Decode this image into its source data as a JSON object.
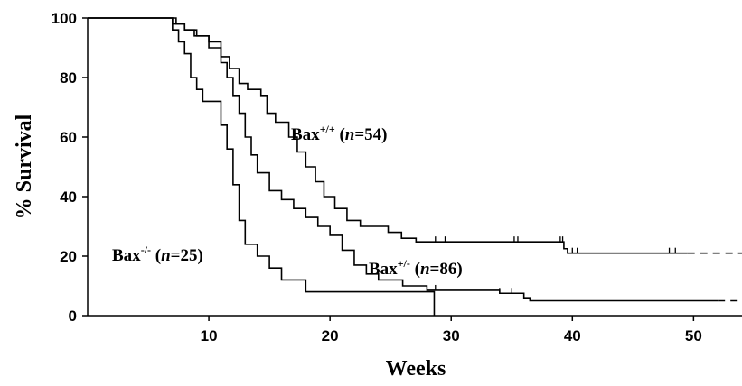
{
  "chart_data": {
    "type": "step",
    "x_label": "Weeks",
    "y_label": "% Survival",
    "xlim": [
      0,
      54
    ],
    "ylim": [
      0,
      100
    ],
    "xticks": [
      10,
      20,
      30,
      40,
      50
    ],
    "yticks": [
      0,
      20,
      40,
      60,
      80,
      100
    ],
    "series": [
      {
        "label": [
          "Bax",
          "+/+",
          " (",
          "n",
          "=54)"
        ],
        "color": "#000000",
        "dashed_extension": true,
        "x": [
          0,
          7.3,
          8,
          8.8,
          10,
          11,
          11.7,
          12.5,
          13.2,
          14.3,
          14.8,
          15.5,
          16.6,
          17.3,
          18,
          18.8,
          19.5,
          20.4,
          21.4,
          22.5,
          24.8,
          25.9,
          27.1,
          39.3,
          39.6,
          49.5
        ],
        "values": [
          100,
          98,
          96,
          94,
          92,
          87,
          83,
          78,
          76,
          74,
          68,
          65,
          60,
          55,
          50,
          45,
          40,
          36,
          32,
          30,
          28,
          26,
          24.8,
          22.5,
          21,
          21
        ],
        "censored": [
          28.7,
          29.5,
          35.2,
          35.5,
          39,
          39.2,
          40,
          40.4,
          48,
          48.5
        ]
      },
      {
        "label": [
          "Bax",
          "+/-",
          " (",
          "n",
          "=86)"
        ],
        "color": "#000000",
        "dashed_extension": true,
        "x": [
          0,
          7,
          8,
          9,
          10,
          11,
          11.5,
          12,
          12.5,
          13,
          13.5,
          14,
          15,
          16,
          17,
          18,
          19,
          20,
          21,
          22,
          23,
          24,
          26,
          28,
          34,
          36,
          36.5,
          52
        ],
        "values": [
          100,
          98,
          96,
          94,
          90,
          85,
          80,
          74,
          68,
          60,
          54,
          48,
          42,
          39,
          36,
          33,
          30,
          27,
          22,
          17,
          14,
          12,
          10,
          8.5,
          7.5,
          6,
          5,
          5
        ],
        "censored": [
          28.7,
          34,
          35
        ]
      },
      {
        "label": [
          "Bax",
          "-/-",
          " (",
          "n",
          "=25)"
        ],
        "color": "#000000",
        "dashed_extension": false,
        "x": [
          0,
          7,
          7.5,
          8,
          8.5,
          9,
          9.5,
          11,
          11.5,
          12,
          12.5,
          13,
          14,
          15,
          16,
          18,
          28.6,
          28.6
        ],
        "values": [
          100,
          96,
          92,
          88,
          80,
          76,
          72,
          64,
          56,
          44,
          32,
          24,
          20,
          16,
          12,
          8,
          8,
          0
        ],
        "censored": []
      }
    ]
  }
}
